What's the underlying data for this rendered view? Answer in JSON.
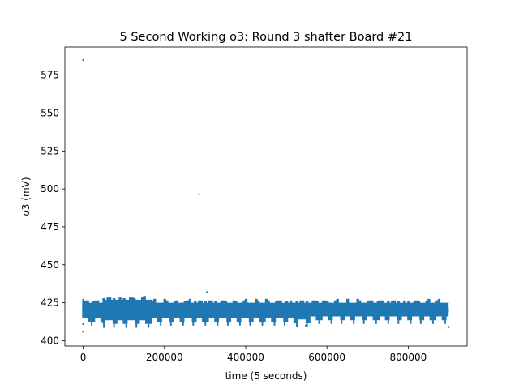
{
  "chart_data": {
    "type": "scatter",
    "title": "5 Second Working o3: Round 3 shafter Board #21",
    "xlabel": "time (5 seconds)",
    "ylabel": "o3 (mV)",
    "xlim": [
      -45000,
      945000
    ],
    "ylim": [
      396.5,
      593.5
    ],
    "x_ticks": [
      0,
      200000,
      400000,
      600000,
      800000
    ],
    "x_tick_labels": [
      "0",
      "200000",
      "400000",
      "600000",
      "800000"
    ],
    "y_ticks": [
      400,
      425,
      450,
      475,
      500,
      525,
      550,
      575
    ],
    "y_tick_labels": [
      "400",
      "425",
      "450",
      "475",
      "500",
      "525",
      "550",
      "575"
    ],
    "series_color": "#1f77b4",
    "grid": false,
    "legend": "none",
    "dense_band": {
      "x_start": 1000,
      "x_end": 900000,
      "center_mV": 420,
      "typical_low_mV": 413,
      "typical_high_mV": 425
    },
    "points": [
      {
        "x": 0,
        "y": 585
      },
      {
        "x": 0,
        "y": 406
      },
      {
        "x": 0,
        "y": 427
      },
      {
        "x": 0,
        "y": 411
      },
      {
        "x": 285000,
        "y": 496.5
      },
      {
        "x": 262000,
        "y": 427
      },
      {
        "x": 305000,
        "y": 432
      },
      {
        "x": 548000,
        "y": 410
      },
      {
        "x": 900000,
        "y": 409
      }
    ]
  }
}
